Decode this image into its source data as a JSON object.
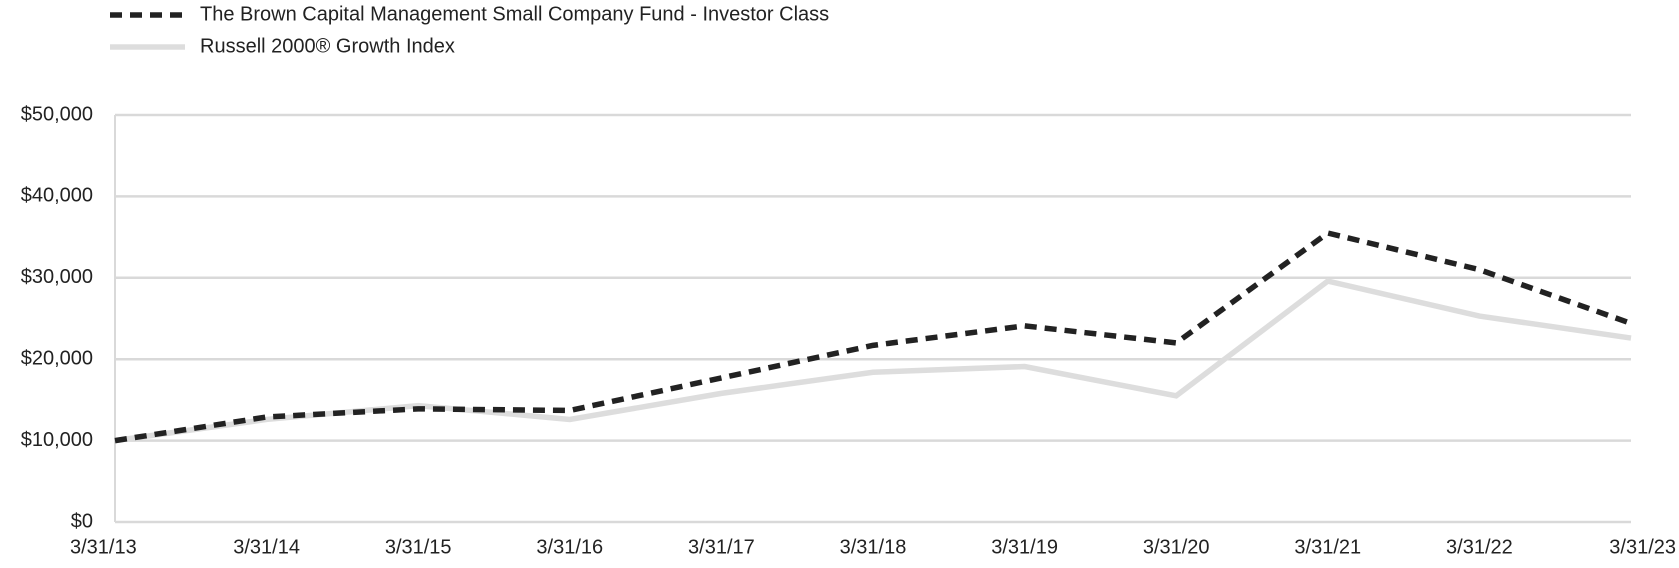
{
  "chart_data": {
    "type": "line",
    "categories": [
      "3/31/13",
      "3/31/14",
      "3/31/15",
      "3/31/16",
      "3/31/17",
      "3/31/18",
      "3/31/19",
      "3/31/20",
      "3/31/21",
      "3/31/22",
      "3/31/23"
    ],
    "series": [
      {
        "name": "The Brown Capital Management Small Company Fund - Investor Class",
        "color": "#222222",
        "dashed": true,
        "values": [
          10000,
          12900,
          13900,
          13700,
          17700,
          21700,
          24100,
          22000,
          35500,
          31000,
          24400
        ]
      },
      {
        "name": "Russell 2000® Growth Index",
        "color": "#dddddd",
        "dashed": false,
        "values": [
          10000,
          12600,
          14300,
          12600,
          15800,
          18400,
          19100,
          15500,
          29600,
          25300,
          22600
        ]
      }
    ],
    "ylim": [
      0,
      50000
    ],
    "yticks": [
      {
        "value": 0,
        "label": "$0"
      },
      {
        "value": 10000,
        "label": "$10,000"
      },
      {
        "value": 20000,
        "label": "$20,000"
      },
      {
        "value": 30000,
        "label": "$30,000"
      },
      {
        "value": 40000,
        "label": "$40,000"
      },
      {
        "value": 50000,
        "label": "$50,000"
      }
    ],
    "grid": true,
    "legend": "top-left"
  }
}
